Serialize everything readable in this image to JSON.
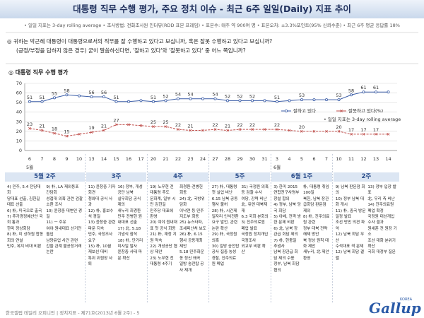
{
  "header": {
    "title": "대통령 직무 수행 평가, 주요 정치 이슈 - 최근 6주 일일(Daily) 지표 추이",
    "info": "• 일일 지표는 3-day rolling average  • 조사방법: 전화조사원 인터뷰(RDD 표본 프레임)  • 표본수: 매주 약 900여 명  • 표본오차: ±3.3%포인트(95% 신뢰수준)  • 최근 6주 평균 응답률 18%"
  },
  "question": {
    "text": "◎ 귀하는 박근혜 대통령이 대통령으로서의 직무를 잘 수행하고 있다고 보십니까, 혹은 잘못 수행하고 있다고 보십니까?",
    "note": "(긍정/부정을 답하지 않은 경우) 굳이 말씀하신다면, '잘하고 있다'와 '잘못하고 있다' 중 어느 쪽입니까?"
  },
  "chart_data": {
    "type": "line",
    "title": "◎ 대통령 직무 수행 평가",
    "categories": [
      "6",
      "7",
      "8",
      "9",
      "10",
      "13",
      "14",
      "15",
      "16",
      "17",
      "20",
      "21",
      "22",
      "23",
      "24",
      "27",
      "28",
      "29",
      "30",
      "31",
      "3",
      "4",
      "5",
      "6",
      "7",
      "10",
      "11",
      "12",
      "13",
      "14"
    ],
    "months": [
      "5월",
      null,
      null,
      null,
      null,
      null,
      null,
      null,
      null,
      null,
      null,
      null,
      null,
      null,
      null,
      null,
      null,
      null,
      null,
      null,
      "6월",
      null,
      null,
      null,
      null,
      null,
      null,
      null,
      null,
      null
    ],
    "ylim": [
      0,
      70
    ],
    "yticks": [
      0,
      10,
      20,
      30,
      40,
      50,
      60,
      70
    ],
    "grid": true,
    "legend": "right",
    "legend_note": "• 일일 지표는 3-day rolling average",
    "series": [
      {
        "name": "잘하고 있다",
        "color": "#3d5fa8",
        "marker": "circle",
        "values": [
          51,
          51,
          55,
          58,
          57,
          56,
          56,
          51,
          51,
          52,
          51,
          52,
          54,
          54,
          54,
          54,
          52,
          52,
          52,
          52,
          51,
          52,
          53,
          53,
          53,
          53,
          58,
          61,
          61,
          61
        ],
        "value_labels": [
          "51",
          "51",
          "55",
          "58",
          null,
          "56",
          "56",
          "51",
          null,
          null,
          "51",
          "52",
          "54",
          "54",
          null,
          "54",
          "52",
          "52",
          "52",
          null,
          "51",
          null,
          "53",
          null,
          null,
          "53",
          "58",
          "61",
          "61",
          null
        ]
      },
      {
        "name": "잘못하고 있다(%)",
        "color": "#c0504d",
        "marker": "cross",
        "values": [
          23,
          21,
          18,
          15,
          17,
          19,
          21,
          27,
          27,
          26,
          25,
          25,
          22,
          21,
          21,
          22,
          21,
          22,
          22,
          22,
          22,
          21,
          20,
          20,
          20,
          20,
          17,
          17,
          17,
          17
        ],
        "value_labels": [
          "23",
          "21",
          "18",
          "15",
          null,
          "19",
          "21",
          "27",
          null,
          null,
          "25",
          "25",
          "22",
          "21",
          null,
          "22",
          "21",
          "22",
          "22",
          null,
          "22",
          null,
          "20",
          null,
          null,
          "20",
          "17",
          "17",
          "17",
          null
        ]
      }
    ]
  },
  "weeks": [
    {
      "title": "5월 2주",
      "items": [
        "4) 민주, 5.4 전당대회",
        "당대표 선출, 김한길 대표 선출",
        "6) 朴, 미국으로 출국",
        "7) 추가경정예산안 국회 통과",
        "한미 정상회담",
        "8) 朴, 미 상하원 합동회의 연설",
        "민주, 복지 비대 비판",
        "9) 朴, LA 재외동포 간담회",
        "성접대 의혹 관련 검찰 소환 조사",
        "10) 윤창중 대변인 경질",
        "11) ㅡ 주유",
        "여야 원내대표 선거전 돌입",
        "남양유업 사건 관련",
        "갑을 관계 불공정거래 논란"
      ]
    },
    {
      "title": "3주",
      "items": [
        "11) 윤창중 기자회견",
        "청와대 공식 사과",
        "12) 朴, 홍보수석 경질",
        "13) 윤창중 관련 파문 지속",
        "민주, 국정조사 요구",
        "15) 朴, 10월 재보선 대비",
        "특위 위원장 사퇴",
        "16) 정부, 개성공단 남북",
        "실무회담 공식 제의",
        "새누리 최경환",
        "민주 전병헌 원내대표 선출",
        "17) 北, 5.18 기념식 참석",
        "18) 朴, 단거리 미사일 발사",
        "윤창중 사태 파문 확산"
      ]
    },
    {
      "title": "4주",
      "items": [
        "19) 노무현 전 대통령 추도",
        "문화계, 일부 시민 김한길",
        "민주당 대표에 환영",
        "20) 여야 원내대표 첫 공식 회동",
        "21) 朴, 재정 지원 약속",
        "22) 개성공단 협상 제안",
        "23) 노무현 전 대통령 4주기",
        "최경환-전병헌 회동",
        "24) 北, 국방위 담화",
        "이낙연 등 민주 지도부 회동",
        "25) 뉴스타파, 조세피난처 보도",
        "26) 朴, 6.15 행사 공동개최 제안",
        "5.18 민주화운동 정신 왜곡",
        "일방 송전탑 공사 재개"
      ]
    },
    {
      "title": "5주",
      "items": [
        "27) 朴, 대통령 첫 실업 비난",
        "6.15 남북 공동행사 불허",
        "28) 朴, 시간제 일자리 인식전환",
        "요구 발언, 관련 논란 확산",
        "29) 朴, 국정원 의혹",
        "30) 일방 송전탑 공사 집중 농성",
        "경찰, 진주의료원 폐업",
        "31) 국정원 의혹 등 검찰 수사",
        "여당, 강력 비난",
        "北, 유엔 대북제재",
        "6.3 국회 본회의",
        "3) 진주의료원 폐업 발표",
        "국정원 정치개입 국정조사",
        "외교부 비판 확산"
      ]
    },
    {
      "title": "6월 1주",
      "items": [
        "3) 한미 2015",
        "연합전구사령부 창설 합의",
        "4) 정부, 남북 당국 회담",
        "5) 아베, 전격 방한 문제 비판",
        "6) 北, 남북 장관급 회담 제의",
        "7) 朴, 현충일 추념사",
        "남북 장관급 회담 제의 수용",
        "정부, 남북 회담 협의",
        "朴, 대통령 취임 100일",
        "북한, 남북 장관급회담 판문점 제의",
        "8) 朴, 진주의료원 관련",
        "정부 대북 전략 해제 방안",
        "북 정상 원칙 대화 제안",
        "새누리, 北 제안 환영"
      ]
    },
    {
      "title": "2주",
      "items": [
        "9) 남북 판문점 회의",
        "10) 정부 남북 대화 개시",
        "11) 朴, 중국 방문 일정 발표",
        "조선 반민 의견 파악",
        "12) 남북 회담 무산",
        "수석대표 격 문제",
        "12) 남북 회담 결렬",
        "13) 정부 입장 발표",
        "北, 우리 측 비난",
        "14) 진주의료원 폐업 확정",
        "국정원 대선개입 수사 결과",
        "원세훈 전 원장 기소",
        "조선 대화 분위기 확산",
        "국회 대정부 질문"
      ]
    }
  ],
  "footer": "한국갤럽 데일리 오피니언 | 정치지표 - 제71호(2013년 6월 2주) - 5",
  "logo": {
    "name": "Gallup",
    "sub": "KOREA"
  }
}
